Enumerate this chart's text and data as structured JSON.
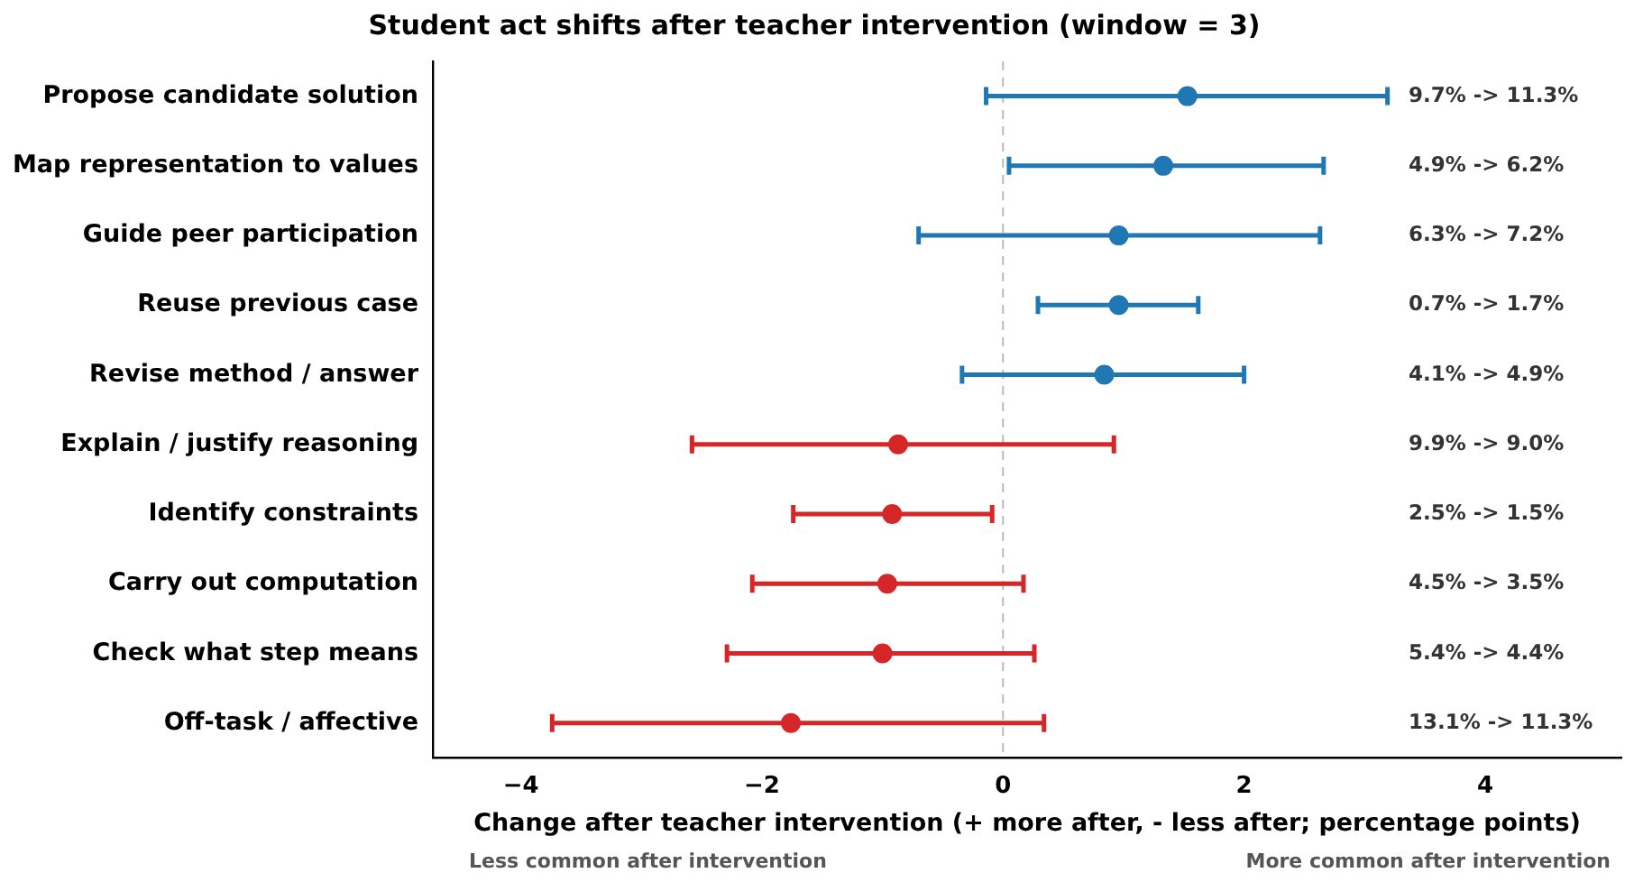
{
  "chart_data": {
    "type": "scatter",
    "orientation": "horizontal",
    "title": "Student act shifts after teacher intervention (window = 3)",
    "xlabel": "Change after teacher intervention (+ more after, - less after; percentage points)",
    "categories": [
      "Propose candidate solution",
      "Map representation to values",
      "Guide peer participation",
      "Reuse previous case",
      "Revise method / answer",
      "Explain / justify reasoning",
      "Identify constraints",
      "Carry out computation",
      "Check what step means",
      "Off-task / affective"
    ],
    "values": [
      1.53,
      1.33,
      0.96,
      0.96,
      0.84,
      -0.87,
      -0.92,
      -0.96,
      -1.0,
      -1.76
    ],
    "errors": [
      [
        -0.14,
        3.19
      ],
      [
        0.05,
        2.66
      ],
      [
        -0.7,
        2.63
      ],
      [
        0.29,
        1.62
      ],
      [
        -0.34,
        2.0
      ],
      [
        -2.58,
        0.92
      ],
      [
        -1.74,
        -0.09
      ],
      [
        -2.08,
        0.17
      ],
      [
        -2.29,
        0.26
      ],
      [
        -3.74,
        0.34
      ]
    ],
    "colors": [
      "#1f77b4",
      "#1f77b4",
      "#1f77b4",
      "#1f77b4",
      "#1f77b4",
      "#d62728",
      "#d62728",
      "#d62728",
      "#d62728",
      "#d62728"
    ],
    "xlim": [
      -4.73,
      5.13
    ],
    "xticks": [
      {
        "value": -4,
        "label": "−4"
      },
      {
        "value": -2,
        "label": "−2"
      },
      0,
      2,
      4
    ],
    "ref_lines": [
      {
        "axis": "x",
        "value": 0,
        "color": "#bbbbbb",
        "line_style": "dashed"
      }
    ],
    "marker": "circle",
    "grid": false,
    "legend": false,
    "annotations": [
      "9.7% -> 11.3%",
      "4.9% -> 6.2%",
      "6.3% -> 7.2%",
      "0.7% -> 1.7%",
      "4.1% -> 4.9%",
      "9.9% -> 9.0%",
      "2.5% -> 1.5%",
      "4.5% -> 3.5%",
      "5.4% -> 4.4%",
      "13.1% -> 11.3%",
      "Less common after intervention",
      "More common after intervention"
    ]
  }
}
